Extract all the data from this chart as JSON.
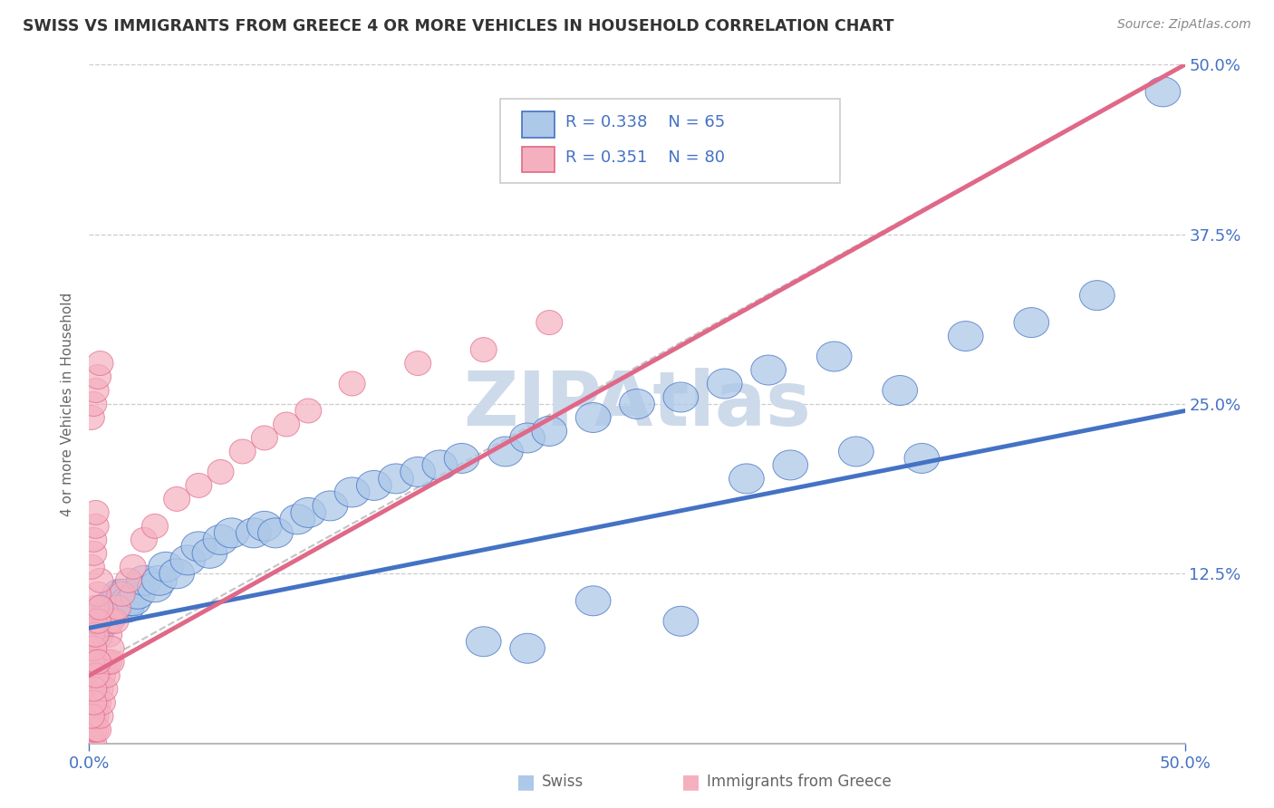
{
  "title": "SWISS VS IMMIGRANTS FROM GREECE 4 OR MORE VEHICLES IN HOUSEHOLD CORRELATION CHART",
  "source_text": "Source: ZipAtlas.com",
  "ylabel": "4 or more Vehicles in Household",
  "xlim": [
    0.0,
    0.5
  ],
  "ylim": [
    0.0,
    0.5
  ],
  "ytick_positions": [
    0.125,
    0.25,
    0.375,
    0.5
  ],
  "legend_r_swiss": "0.338",
  "legend_n_swiss": "65",
  "legend_r_greece": "0.351",
  "legend_n_greece": "80",
  "swiss_color": "#adc8e8",
  "greece_color": "#f5b0c0",
  "swiss_edge_color": "#4472c4",
  "greece_edge_color": "#e06888",
  "swiss_line_color": "#4472c4",
  "greece_line_color": "#e06888",
  "watermark": "ZIPAtlas",
  "watermark_color": "#cddaea",
  "title_color": "#333333",
  "tick_color": "#4472c4",
  "label_color": "#666666",
  "grid_color": "#cccccc",
  "swiss_x": [
    0.003,
    0.004,
    0.005,
    0.005,
    0.006,
    0.007,
    0.008,
    0.009,
    0.01,
    0.01,
    0.011,
    0.012,
    0.013,
    0.014,
    0.015,
    0.016,
    0.017,
    0.018,
    0.02,
    0.022,
    0.025,
    0.03,
    0.032,
    0.035,
    0.04,
    0.045,
    0.05,
    0.055,
    0.06,
    0.065,
    0.075,
    0.08,
    0.085,
    0.095,
    0.1,
    0.11,
    0.12,
    0.13,
    0.14,
    0.15,
    0.16,
    0.17,
    0.19,
    0.2,
    0.21,
    0.23,
    0.25,
    0.27,
    0.29,
    0.31,
    0.34,
    0.37,
    0.4,
    0.43,
    0.46,
    0.3,
    0.32,
    0.35,
    0.38,
    0.23,
    0.27,
    0.18,
    0.2,
    0.49
  ],
  "swiss_y": [
    0.08,
    0.085,
    0.09,
    0.095,
    0.095,
    0.09,
    0.1,
    0.095,
    0.1,
    0.095,
    0.1,
    0.105,
    0.1,
    0.11,
    0.105,
    0.11,
    0.1,
    0.105,
    0.105,
    0.11,
    0.12,
    0.115,
    0.12,
    0.13,
    0.125,
    0.135,
    0.145,
    0.14,
    0.15,
    0.155,
    0.155,
    0.16,
    0.155,
    0.165,
    0.17,
    0.175,
    0.185,
    0.19,
    0.195,
    0.2,
    0.205,
    0.21,
    0.215,
    0.225,
    0.23,
    0.24,
    0.25,
    0.255,
    0.265,
    0.275,
    0.285,
    0.26,
    0.3,
    0.31,
    0.33,
    0.195,
    0.205,
    0.215,
    0.21,
    0.105,
    0.09,
    0.075,
    0.07,
    0.48
  ],
  "greece_x": [
    0.001,
    0.001,
    0.001,
    0.001,
    0.001,
    0.001,
    0.002,
    0.002,
    0.002,
    0.002,
    0.002,
    0.002,
    0.002,
    0.002,
    0.003,
    0.003,
    0.003,
    0.003,
    0.003,
    0.004,
    0.004,
    0.004,
    0.005,
    0.005,
    0.005,
    0.006,
    0.006,
    0.007,
    0.007,
    0.008,
    0.008,
    0.009,
    0.009,
    0.01,
    0.01,
    0.01,
    0.012,
    0.013,
    0.015,
    0.018,
    0.02,
    0.025,
    0.03,
    0.04,
    0.05,
    0.06,
    0.07,
    0.08,
    0.09,
    0.1,
    0.12,
    0.15,
    0.18,
    0.21,
    0.001,
    0.002,
    0.003,
    0.004,
    0.005,
    0.001,
    0.002,
    0.002,
    0.003,
    0.003,
    0.001,
    0.002,
    0.003,
    0.004,
    0.005,
    0.001,
    0.002,
    0.002,
    0.003,
    0.004,
    0.001,
    0.002,
    0.003,
    0.004,
    0.005
  ],
  "greece_y": [
    0.0,
    0.01,
    0.02,
    0.03,
    0.04,
    0.05,
    0.0,
    0.01,
    0.02,
    0.03,
    0.04,
    0.05,
    0.06,
    0.07,
    0.01,
    0.02,
    0.03,
    0.04,
    0.06,
    0.01,
    0.03,
    0.05,
    0.02,
    0.04,
    0.06,
    0.03,
    0.05,
    0.04,
    0.06,
    0.05,
    0.06,
    0.06,
    0.08,
    0.06,
    0.07,
    0.09,
    0.09,
    0.1,
    0.11,
    0.12,
    0.13,
    0.15,
    0.16,
    0.18,
    0.19,
    0.2,
    0.215,
    0.225,
    0.235,
    0.245,
    0.265,
    0.28,
    0.29,
    0.31,
    0.08,
    0.09,
    0.1,
    0.11,
    0.12,
    0.13,
    0.14,
    0.15,
    0.16,
    0.17,
    0.06,
    0.07,
    0.08,
    0.09,
    0.1,
    0.02,
    0.03,
    0.04,
    0.05,
    0.06,
    0.24,
    0.25,
    0.26,
    0.27,
    0.28
  ]
}
